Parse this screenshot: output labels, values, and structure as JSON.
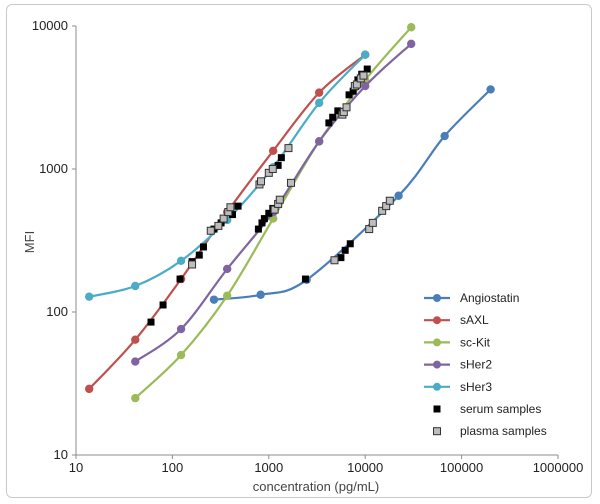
{
  "chart_data": {
    "type": "scatter",
    "title": "",
    "xlabel": "concentration (pg/mL)",
    "ylabel": "MFI",
    "xscale": "log",
    "yscale": "log",
    "xlim": [
      10,
      1000000
    ],
    "ylim": [
      10,
      10000
    ],
    "x_ticks": [
      "10",
      "100",
      "1000",
      "10000",
      "100000",
      "1000000"
    ],
    "y_ticks": [
      "10",
      "100",
      "1000",
      "10000"
    ],
    "grid": false,
    "legend": "bottom-right",
    "series": [
      {
        "name": "Angiostatin",
        "style": "line-marker",
        "color": "#4a7ebb",
        "points": [
          [
            270,
            122
          ],
          [
            823,
            132
          ],
          [
            2470,
            168
          ],
          [
            22200,
            650
          ],
          [
            66700,
            1700
          ],
          [
            200000,
            3600
          ]
        ]
      },
      {
        "name": "sAXL",
        "style": "line-marker",
        "color": "#c0504d",
        "points": [
          [
            13.7,
            29
          ],
          [
            41.2,
            64
          ],
          [
            123,
            170
          ],
          [
            370,
            500
          ],
          [
            1110,
            1340
          ],
          [
            3330,
            3420
          ],
          [
            10000,
            6300
          ]
        ]
      },
      {
        "name": "sc-Kit",
        "style": "line-marker",
        "color": "#9bbb59",
        "points": [
          [
            41.2,
            25
          ],
          [
            123,
            50
          ],
          [
            370,
            130
          ],
          [
            1110,
            450
          ],
          [
            3330,
            1560
          ],
          [
            10000,
            4200
          ],
          [
            30000,
            9800
          ]
        ]
      },
      {
        "name": "sHer2",
        "style": "line-marker",
        "color": "#8064a2",
        "points": [
          [
            41.2,
            45
          ],
          [
            123,
            76
          ],
          [
            370,
            200
          ],
          [
            1110,
            500
          ],
          [
            3330,
            1560
          ],
          [
            10000,
            3800
          ],
          [
            30000,
            7500
          ]
        ]
      },
      {
        "name": "sHer3",
        "style": "line-marker",
        "color": "#4bacc6",
        "points": [
          [
            13.7,
            128
          ],
          [
            41.2,
            152
          ],
          [
            123,
            228
          ],
          [
            370,
            440
          ],
          [
            1110,
            1030
          ],
          [
            3330,
            2900
          ],
          [
            10000,
            6300
          ]
        ]
      },
      {
        "name": "serum samples",
        "style": "marker",
        "color": "#000000",
        "points": [
          [
            60,
            85
          ],
          [
            80,
            112
          ],
          [
            120,
            170
          ],
          [
            160,
            225
          ],
          [
            190,
            250
          ],
          [
            210,
            285
          ],
          [
            270,
            380
          ],
          [
            320,
            420
          ],
          [
            420,
            480
          ],
          [
            480,
            550
          ],
          [
            780,
            380
          ],
          [
            850,
            420
          ],
          [
            900,
            450
          ],
          [
            1000,
            490
          ],
          [
            1100,
            530
          ],
          [
            1250,
            1060
          ],
          [
            1350,
            1200
          ],
          [
            2400,
            170
          ],
          [
            4200,
            2100
          ],
          [
            4600,
            2300
          ],
          [
            5200,
            2550
          ],
          [
            5600,
            240
          ],
          [
            6200,
            270
          ],
          [
            6800,
            3300
          ],
          [
            7000,
            300
          ],
          [
            7500,
            3500
          ],
          [
            8000,
            3800
          ],
          [
            8400,
            4200
          ],
          [
            9200,
            4600
          ],
          [
            10500,
            5000
          ]
        ]
      },
      {
        "name": "plasma samples",
        "style": "marker",
        "color": "#9a9a9a",
        "points": [
          [
            160,
            215
          ],
          [
            250,
            370
          ],
          [
            300,
            400
          ],
          [
            340,
            450
          ],
          [
            380,
            500
          ],
          [
            400,
            540
          ],
          [
            800,
            780
          ],
          [
            830,
            820
          ],
          [
            1000,
            940
          ],
          [
            1100,
            1000
          ],
          [
            1150,
            520
          ],
          [
            1250,
            570
          ],
          [
            1300,
            610
          ],
          [
            1600,
            1400
          ],
          [
            1700,
            800
          ],
          [
            4800,
            230
          ],
          [
            5800,
            2400
          ],
          [
            6000,
            2500
          ],
          [
            6400,
            2700
          ],
          [
            7800,
            3800
          ],
          [
            8200,
            3900
          ],
          [
            9000,
            4300
          ],
          [
            9600,
            4500
          ],
          [
            11000,
            380
          ],
          [
            12000,
            420
          ],
          [
            15000,
            510
          ],
          [
            16500,
            550
          ],
          [
            18000,
            600
          ]
        ]
      }
    ]
  }
}
